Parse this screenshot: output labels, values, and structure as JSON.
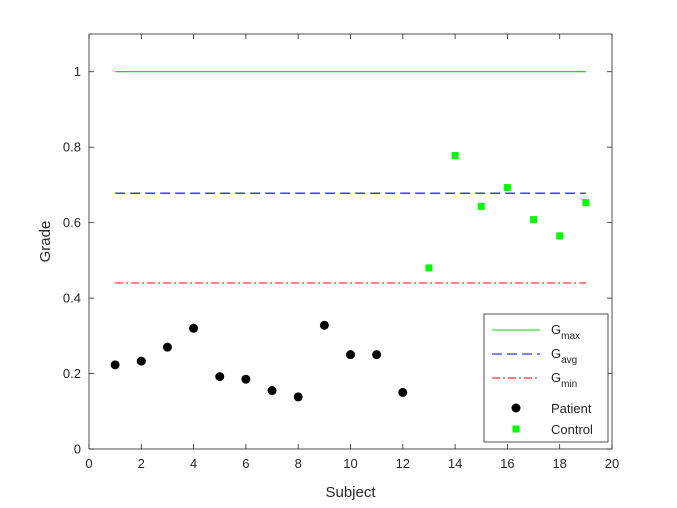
{
  "chart_data": {
    "type": "scatter",
    "title": "",
    "xlabel": "Subject",
    "ylabel": "Grade",
    "xlim": [
      0,
      20
    ],
    "ylim": [
      0,
      1.1
    ],
    "xticks": [
      0,
      2,
      4,
      6,
      8,
      10,
      12,
      14,
      16,
      18,
      20
    ],
    "yticks": [
      0,
      0.2,
      0.4,
      0.6,
      0.8,
      1
    ],
    "xtick_labels": [
      "0",
      "2",
      "4",
      "6",
      "8",
      "10",
      "12",
      "14",
      "16",
      "18",
      "20"
    ],
    "ytick_labels": [
      "0",
      "0.2",
      "0.4",
      "0.6",
      "0.8",
      "1"
    ],
    "grid": false,
    "legend_position": "bottom-right",
    "lines": [
      {
        "name": "G",
        "subscript": "max",
        "style": "solid",
        "color": "#00d900",
        "x": [
          1,
          19
        ],
        "y": [
          1.0,
          1.0
        ]
      },
      {
        "name": "G",
        "subscript": "avg",
        "style": "dashed",
        "color": "#0000ff",
        "x": [
          1,
          19
        ],
        "y": [
          0.678,
          0.678
        ]
      },
      {
        "name": "G",
        "subscript": "min",
        "style": "dashdot",
        "color": "#ff0000",
        "x": [
          1,
          19
        ],
        "y": [
          0.44,
          0.44
        ]
      }
    ],
    "series": [
      {
        "name": "Patient",
        "marker": "circle",
        "color": "#000000",
        "x": [
          1,
          2,
          3,
          4,
          5,
          6,
          7,
          8,
          9,
          10,
          11,
          12
        ],
        "y": [
          0.223,
          0.233,
          0.27,
          0.32,
          0.192,
          0.185,
          0.155,
          0.138,
          0.328,
          0.25,
          0.25,
          0.15
        ]
      },
      {
        "name": "Control",
        "marker": "square",
        "color": "#00ff00",
        "x": [
          13,
          14,
          15,
          16,
          17,
          18,
          19
        ],
        "y": [
          0.48,
          0.778,
          0.643,
          0.693,
          0.608,
          0.565,
          0.653
        ]
      }
    ]
  }
}
